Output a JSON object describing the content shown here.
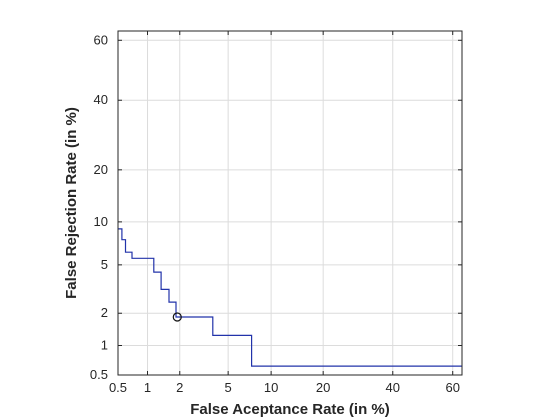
{
  "chart_data": {
    "type": "line",
    "xlabel": "False Aceptance Rate (in %)",
    "ylabel": "False Rejection Rate (in %)",
    "axis_scale": "normal-deviate (DET)",
    "xlim": [
      0.5,
      63
    ],
    "ylim": [
      0.5,
      63
    ],
    "x_ticks": [
      0.5,
      1,
      2,
      5,
      10,
      20,
      40,
      60
    ],
    "x_tick_labels": [
      "0.5",
      "1",
      "2",
      "5",
      "10",
      "20",
      "40",
      "60"
    ],
    "y_ticks": [
      0.5,
      1,
      2,
      5,
      10,
      20,
      40,
      60
    ],
    "y_tick_labels": [
      "0.5",
      "1",
      "2",
      "5",
      "10",
      "20",
      "40",
      "60"
    ],
    "grid": true,
    "series": [
      {
        "color": "#2233aa",
        "x": [
          0.5,
          0.55,
          0.55,
          0.6,
          0.6,
          0.7,
          0.7,
          1.15,
          1.15,
          1.35,
          1.35,
          1.6,
          1.6,
          1.85,
          1.85,
          3.8,
          3.8,
          7.4,
          7.4,
          63
        ],
        "y": [
          9.0,
          9.0,
          7.6,
          7.6,
          6.2,
          6.2,
          5.6,
          5.6,
          4.4,
          4.4,
          3.2,
          3.2,
          2.5,
          2.5,
          1.85,
          1.85,
          1.25,
          1.25,
          0.62,
          0.62
        ]
      }
    ],
    "marker_point": {
      "x": 1.9,
      "y": 1.85,
      "shape": "circle"
    }
  }
}
